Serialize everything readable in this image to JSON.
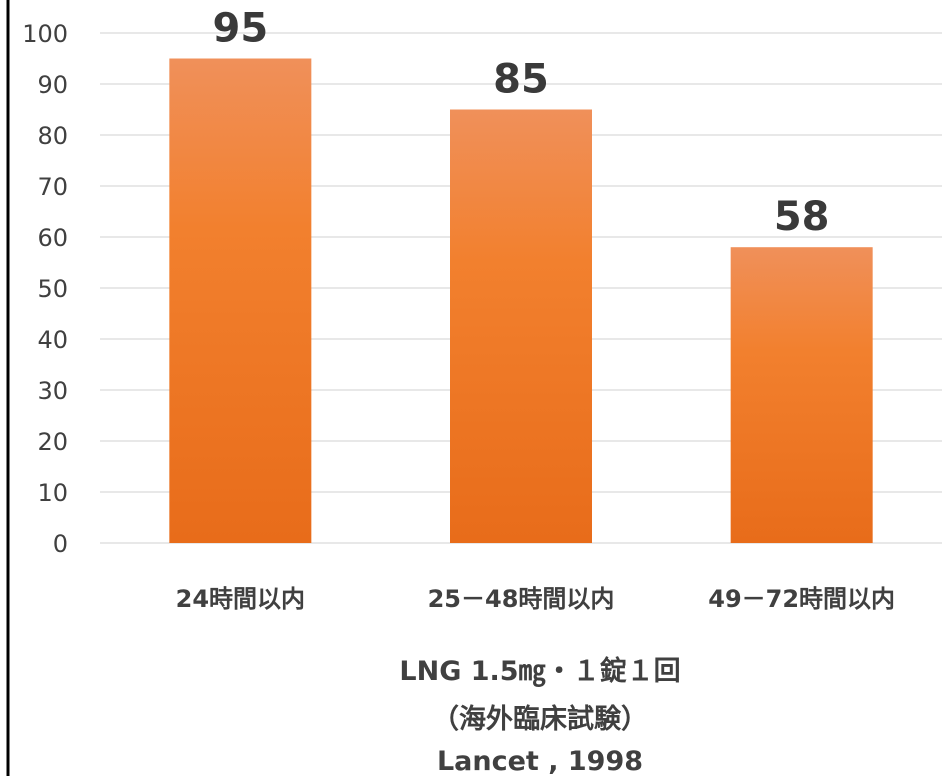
{
  "chart_data": {
    "type": "bar",
    "categories": [
      "24時間以内",
      "25－48時間以内",
      "49－72時間以内"
    ],
    "values": [
      95,
      85,
      58
    ],
    "data_labels": [
      "95",
      "85",
      "58"
    ],
    "ylim": [
      0,
      100
    ],
    "yticks": [
      "0",
      "10",
      "20",
      "30",
      "40",
      "50",
      "60",
      "70",
      "80",
      "90",
      "100"
    ],
    "grid": true,
    "bar_color_top": "#f0905a",
    "bar_color_bottom": "#e86c1a"
  },
  "footer": {
    "line1": "LNG 1.5㎎・１錠１回",
    "line2": "（海外臨床試験）",
    "line3": "Lancet , 1998"
  }
}
